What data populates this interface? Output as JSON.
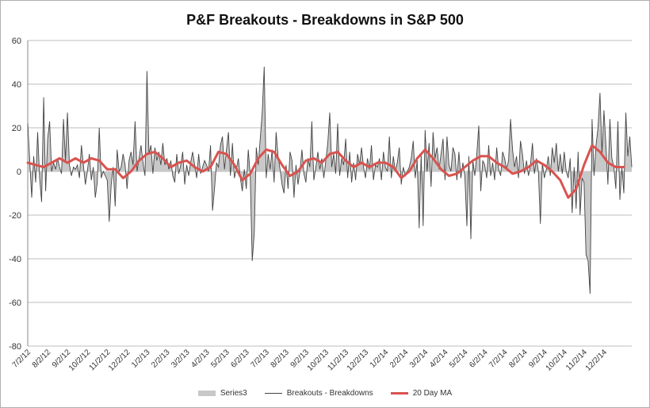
{
  "chart_data": {
    "type": "line",
    "title": "P&F Breakouts - Breakdowns in S&P 500",
    "xlabel": "",
    "ylabel": "",
    "ylim": [
      -80,
      60
    ],
    "yticks": [
      60,
      40,
      20,
      0,
      -20,
      -40,
      -60,
      -80
    ],
    "ytick_labels": [
      "60",
      "40",
      "20",
      "0",
      "-20",
      "-40",
      "-60",
      "-80"
    ],
    "x_tick_labels": [
      "7/2/12",
      "8/2/12",
      "9/2/12",
      "10/2/12",
      "11/2/12",
      "12/2/12",
      "1/2/13",
      "2/2/13",
      "3/2/13",
      "4/2/13",
      "5/2/13",
      "6/2/13",
      "7/2/13",
      "8/2/13",
      "9/2/13",
      "10/2/13",
      "11/2/13",
      "12/2/13",
      "1/2/14",
      "2/2/14",
      "3/2/14",
      "4/2/14",
      "5/2/14",
      "6/2/14",
      "7/2/14",
      "8/2/14",
      "9/2/14",
      "10/2/14",
      "11/2/14",
      "12/2/14"
    ],
    "grid": true,
    "legend_position": "bottom",
    "series": [
      {
        "name": "Series3",
        "kind": "area",
        "color": "#c8c8c8",
        "note": "same values as Breakouts - Breakdowns"
      },
      {
        "name": "Breakouts - Breakdowns",
        "kind": "line",
        "color": "#444444",
        "values": [
          22,
          5,
          -12,
          7,
          -5,
          18,
          -3,
          -14,
          34,
          -9,
          15,
          23,
          0,
          4,
          1,
          6,
          2,
          -1,
          24,
          5,
          27,
          3,
          -2,
          2,
          1,
          3,
          -3,
          12,
          3,
          -6,
          0,
          8,
          -4,
          2,
          -12,
          -5,
          20,
          -3,
          0,
          -2,
          -4,
          -23,
          -6,
          2,
          -16,
          10,
          0,
          2,
          8,
          3,
          -8,
          5,
          9,
          3,
          23,
          0,
          6,
          12,
          4,
          -2,
          46,
          8,
          12,
          -1,
          11,
          5,
          9,
          3,
          13,
          3,
          6,
          1,
          5,
          -2,
          -5,
          8,
          -1,
          3,
          9,
          -6,
          3,
          -2,
          4,
          9,
          3,
          -3,
          8,
          -1,
          2,
          5,
          3,
          0,
          12,
          -18,
          -8,
          4,
          2,
          12,
          16,
          1,
          10,
          18,
          -2,
          13,
          -3,
          1,
          6,
          -3,
          -9,
          1,
          -8,
          10,
          -2,
          -41,
          -28,
          11,
          3,
          15,
          27,
          48,
          -3,
          8,
          1,
          10,
          -5,
          18,
          7,
          1,
          -6,
          -10,
          3,
          -8,
          9,
          5,
          -12,
          3,
          -6,
          0,
          10,
          -1,
          -5,
          6,
          2,
          23,
          -4,
          2,
          9,
          1,
          6,
          -3,
          5,
          13,
          27,
          2,
          8,
          -1,
          22,
          -2,
          6,
          3,
          15,
          -3,
          9,
          -5,
          4,
          -4,
          8,
          3,
          11,
          2,
          -3,
          6,
          1,
          12,
          -4,
          3,
          2,
          6,
          -4,
          9,
          2,
          0,
          16,
          -3,
          7,
          0,
          4,
          11,
          -6,
          2,
          -2,
          0,
          2,
          6,
          14,
          -3,
          5,
          -26,
          8,
          -25,
          19,
          0,
          13,
          -7,
          18,
          6,
          11,
          1,
          8,
          15,
          -4,
          16,
          3,
          0,
          11,
          8,
          -4,
          9,
          -3,
          4,
          -2,
          -25,
          7,
          -31,
          5,
          -2,
          8,
          21,
          -9,
          5,
          3,
          -3,
          12,
          -2,
          4,
          -4,
          11,
          1,
          -2,
          9,
          6,
          1,
          5,
          24,
          10,
          2,
          7,
          -3,
          14,
          8,
          -1,
          5,
          -2,
          3,
          13,
          -1,
          6,
          0,
          -24,
          4,
          -3,
          1,
          7,
          -2,
          11,
          4,
          13,
          0,
          8,
          -1,
          9,
          0,
          -3,
          6,
          -19,
          2,
          -17,
          9,
          -20,
          -3,
          -5,
          -38,
          -41,
          -56,
          24,
          -2,
          12,
          20,
          36,
          8,
          28,
          12,
          -6,
          24,
          6,
          2,
          -8,
          23,
          -13,
          2,
          -10,
          27,
          7,
          16,
          2
        ]
      },
      {
        "name": "20 Day MA",
        "kind": "line",
        "color": "#d9534f",
        "points": [
          [
            0,
            4
          ],
          [
            4,
            3
          ],
          [
            8,
            2
          ],
          [
            12,
            4
          ],
          [
            16,
            6
          ],
          [
            20,
            4
          ],
          [
            24,
            6
          ],
          [
            28,
            4
          ],
          [
            32,
            6
          ],
          [
            36,
            5
          ],
          [
            40,
            1
          ],
          [
            44,
            1
          ],
          [
            48,
            -3
          ],
          [
            52,
            0
          ],
          [
            56,
            5
          ],
          [
            60,
            8
          ],
          [
            64,
            9
          ],
          [
            68,
            6
          ],
          [
            72,
            2
          ],
          [
            76,
            4
          ],
          [
            80,
            5
          ],
          [
            84,
            2
          ],
          [
            88,
            0
          ],
          [
            92,
            2
          ],
          [
            96,
            9
          ],
          [
            100,
            8
          ],
          [
            104,
            3
          ],
          [
            108,
            -4
          ],
          [
            112,
            -1
          ],
          [
            116,
            6
          ],
          [
            120,
            10
          ],
          [
            124,
            9
          ],
          [
            128,
            3
          ],
          [
            132,
            -2
          ],
          [
            136,
            0
          ],
          [
            140,
            5
          ],
          [
            144,
            6
          ],
          [
            148,
            4
          ],
          [
            152,
            8
          ],
          [
            156,
            9
          ],
          [
            160,
            5
          ],
          [
            164,
            2
          ],
          [
            168,
            4
          ],
          [
            172,
            2
          ],
          [
            176,
            4
          ],
          [
            180,
            4
          ],
          [
            184,
            2
          ],
          [
            188,
            -3
          ],
          [
            192,
            0
          ],
          [
            196,
            6
          ],
          [
            200,
            10
          ],
          [
            204,
            6
          ],
          [
            208,
            1
          ],
          [
            212,
            -2
          ],
          [
            216,
            -1
          ],
          [
            220,
            2
          ],
          [
            224,
            5
          ],
          [
            228,
            7
          ],
          [
            232,
            7
          ],
          [
            236,
            4
          ],
          [
            240,
            2
          ],
          [
            244,
            -1
          ],
          [
            248,
            0
          ],
          [
            252,
            2
          ],
          [
            256,
            5
          ],
          [
            260,
            3
          ],
          [
            264,
            0
          ],
          [
            268,
            -4
          ],
          [
            272,
            -12
          ],
          [
            276,
            -8
          ],
          [
            280,
            3
          ],
          [
            284,
            12
          ],
          [
            288,
            9
          ],
          [
            292,
            4
          ],
          [
            296,
            2
          ],
          [
            300,
            2
          ]
        ]
      }
    ]
  }
}
